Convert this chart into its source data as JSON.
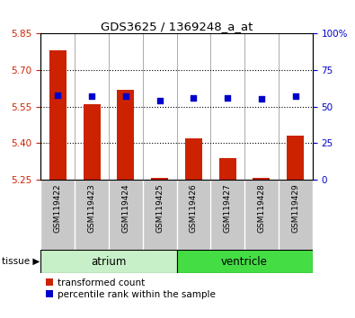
{
  "title": "GDS3625 / 1369248_a_at",
  "samples": [
    "GSM119422",
    "GSM119423",
    "GSM119424",
    "GSM119425",
    "GSM119426",
    "GSM119427",
    "GSM119428",
    "GSM119429"
  ],
  "transformed_count": [
    5.78,
    5.56,
    5.62,
    5.256,
    5.42,
    5.34,
    5.256,
    5.43
  ],
  "percentile_rank": [
    58,
    57,
    57,
    54,
    56,
    56,
    55,
    57
  ],
  "groups": [
    {
      "label": "atrium",
      "n": 4,
      "color": "#C8F0C8"
    },
    {
      "label": "ventricle",
      "n": 4,
      "color": "#44DD44"
    }
  ],
  "ylim_left": [
    5.25,
    5.85
  ],
  "ylim_right": [
    0,
    100
  ],
  "yticks_left": [
    5.25,
    5.4,
    5.55,
    5.7,
    5.85
  ],
  "yticks_right": [
    0,
    25,
    50,
    75,
    100
  ],
  "grid_lines": [
    5.4,
    5.55,
    5.7
  ],
  "bar_color": "#CC2200",
  "dot_color": "#0000CC",
  "bar_width": 0.5,
  "tissue_label": "tissue",
  "legend_bar_label": "transformed count",
  "legend_dot_label": "percentile rank within the sample",
  "tick_bg_color": "#C8C8C8"
}
